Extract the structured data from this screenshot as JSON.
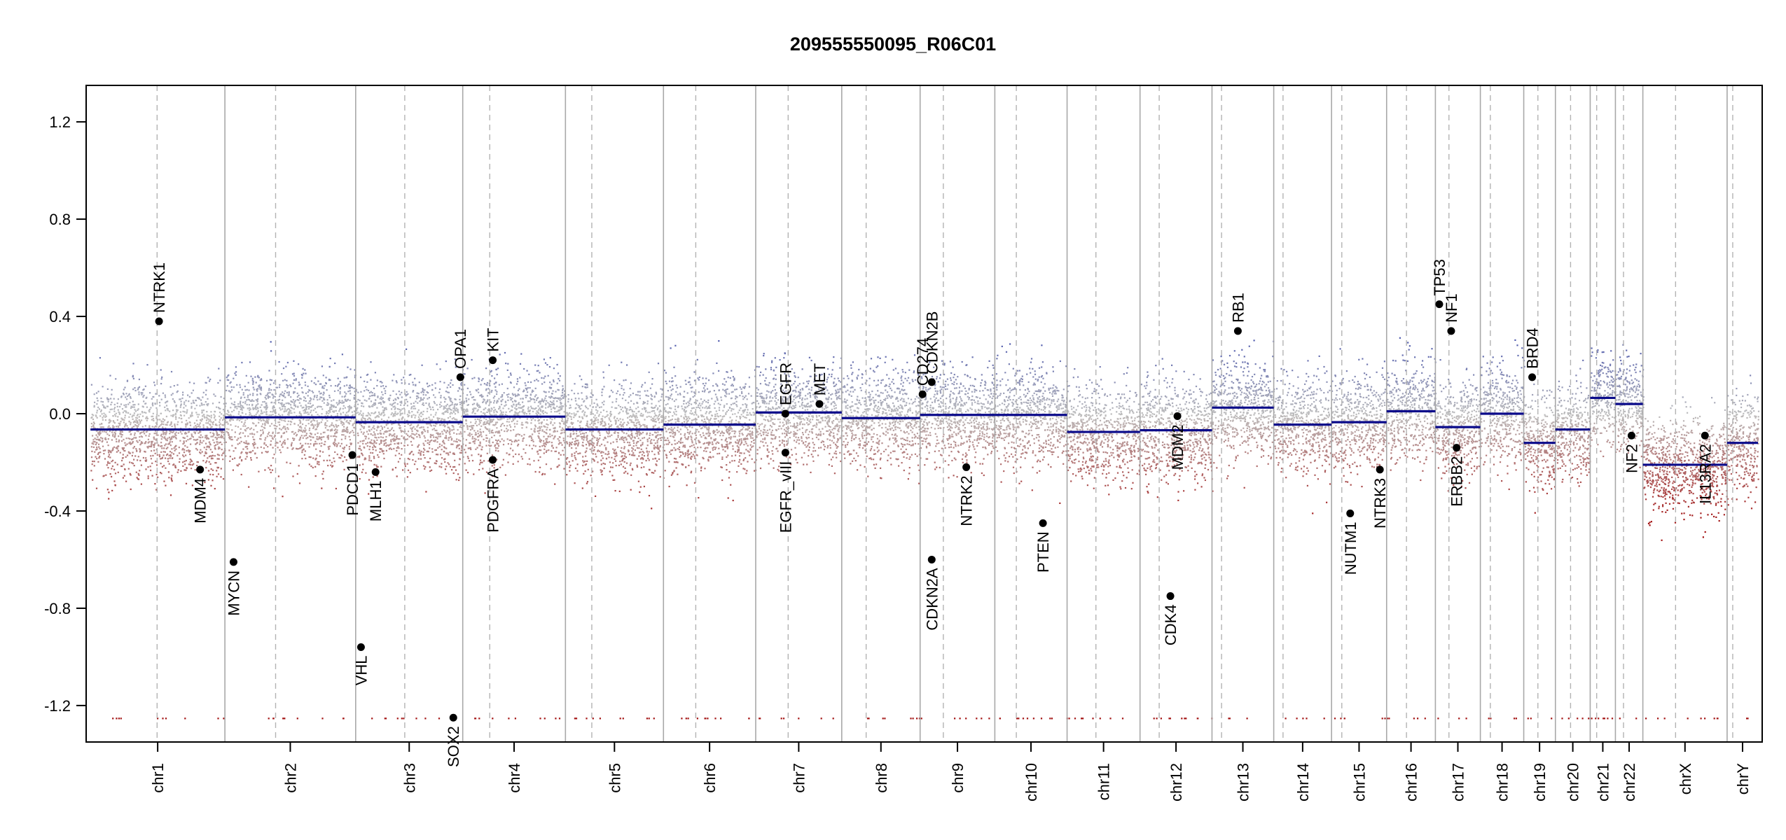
{
  "chart_data": {
    "type": "scatter",
    "title": "209555550095_R06C01",
    "xlabel": "",
    "ylabel": "",
    "ylim": [
      -1.35,
      1.35
    ],
    "yticks": [
      -1.2,
      -0.8,
      -0.4,
      0.0,
      0.4,
      0.8,
      1.2
    ],
    "ytick_labels": [
      "-1.2",
      "-0.8",
      "-0.4",
      "0.0",
      "0.4",
      "0.8",
      "1.2"
    ],
    "grid": false,
    "point_colors": {
      "high": "#1f2fa8",
      "neutral": "#bdbdbd",
      "low": "#a31212"
    },
    "segment_color": "#0a0a8a",
    "chromosomes": [
      {
        "name": "chr1",
        "start": 0,
        "end": 248.96,
        "centromere": 123.4
      },
      {
        "name": "chr2",
        "start": 248.96,
        "end": 491.15,
        "centromere": 93.9
      },
      {
        "name": "chr3",
        "start": 491.15,
        "end": 689.45,
        "centromere": 90.9
      },
      {
        "name": "chr4",
        "start": 689.45,
        "end": 879.66,
        "centromere": 50.0
      },
      {
        "name": "chr5",
        "start": 879.66,
        "end": 1061.2,
        "centromere": 48.8
      },
      {
        "name": "chr6",
        "start": 1061.2,
        "end": 1232.01,
        "centromere": 59.8
      },
      {
        "name": "chr7",
        "start": 1232.01,
        "end": 1391.35,
        "centromere": 60.1
      },
      {
        "name": "chr8",
        "start": 1391.35,
        "end": 1536.49,
        "centromere": 45.2
      },
      {
        "name": "chr9",
        "start": 1536.49,
        "end": 1674.88,
        "centromere": 43.0
      },
      {
        "name": "chr10",
        "start": 1674.88,
        "end": 1808.68,
        "centromere": 39.8
      },
      {
        "name": "chr11",
        "start": 1808.68,
        "end": 1943.77,
        "centromere": 53.4
      },
      {
        "name": "chr12",
        "start": 1943.77,
        "end": 2077.05,
        "centromere": 35.5
      },
      {
        "name": "chr13",
        "start": 2077.05,
        "end": 2191.41,
        "centromere": 17.7
      },
      {
        "name": "chr14",
        "start": 2191.41,
        "end": 2298.45,
        "centromere": 17.2
      },
      {
        "name": "chr15",
        "start": 2298.45,
        "end": 2400.44,
        "centromere": 19.0
      },
      {
        "name": "chr16",
        "start": 2400.44,
        "end": 2490.78,
        "centromere": 36.8
      },
      {
        "name": "chr17",
        "start": 2490.78,
        "end": 2574.04,
        "centromere": 25.1
      },
      {
        "name": "chr18",
        "start": 2574.04,
        "end": 2654.41,
        "centromere": 18.5
      },
      {
        "name": "chr19",
        "start": 2654.41,
        "end": 2713.03,
        "centromere": 26.2
      },
      {
        "name": "chr20",
        "start": 2713.03,
        "end": 2777.47,
        "centromere": 28.1
      },
      {
        "name": "chr21",
        "start": 2777.47,
        "end": 2824.18,
        "centromere": 12.0
      },
      {
        "name": "chr22",
        "start": 2824.18,
        "end": 2875.0,
        "centromere": 15.0
      },
      {
        "name": "chrX",
        "start": 2875.0,
        "end": 3031.04,
        "centromere": 60.6
      },
      {
        "name": "chrY",
        "start": 3031.04,
        "end": 3088.27,
        "centromere": 10.4
      }
    ],
    "x_range": [
      -8,
      3096
    ],
    "segments": [
      {
        "chrom": "chr1",
        "value": -0.065
      },
      {
        "chrom": "chr2",
        "value": -0.015
      },
      {
        "chrom": "chr3",
        "value": -0.035
      },
      {
        "chrom": "chr4",
        "value": -0.012
      },
      {
        "chrom": "chr5",
        "value": -0.065
      },
      {
        "chrom": "chr6",
        "value": -0.045
      },
      {
        "chrom": "chr7",
        "value": 0.005
      },
      {
        "chrom": "chr8",
        "value": -0.018
      },
      {
        "chrom": "chr9",
        "value": -0.005
      },
      {
        "chrom": "chr10",
        "value": -0.005
      },
      {
        "chrom": "chr11",
        "value": -0.075
      },
      {
        "chrom": "chr12",
        "value": -0.068
      },
      {
        "chrom": "chr13",
        "value": 0.025
      },
      {
        "chrom": "chr14",
        "value": -0.045
      },
      {
        "chrom": "chr15",
        "value": -0.035
      },
      {
        "chrom": "chr16",
        "value": 0.01
      },
      {
        "chrom": "chr17",
        "value": -0.055
      },
      {
        "chrom": "chr18",
        "value": 0.0
      },
      {
        "chrom": "chr19",
        "value": -0.12
      },
      {
        "chrom": "chr20",
        "value": -0.065
      },
      {
        "chrom": "chr21",
        "value": 0.065
      },
      {
        "chrom": "chr22",
        "value": 0.04
      },
      {
        "chrom": "chrX",
        "value": -0.21
      },
      {
        "chrom": "chrY",
        "value": -0.12
      }
    ],
    "genes": [
      {
        "name": "NTRK1",
        "x": 127,
        "y": 0.38
      },
      {
        "name": "MDM4",
        "x": 203,
        "y": -0.23
      },
      {
        "name": "MYCN",
        "x": 265,
        "y": -0.61
      },
      {
        "name": "PDCD1",
        "x": 485,
        "y": -0.17
      },
      {
        "name": "VHL",
        "x": 501,
        "y": -0.96
      },
      {
        "name": "MLH1",
        "x": 528,
        "y": -0.24
      },
      {
        "name": "SOX2",
        "x": 672,
        "y": -1.25
      },
      {
        "name": "OPA1",
        "x": 685,
        "y": 0.15
      },
      {
        "name": "KIT",
        "x": 745,
        "y": 0.22
      },
      {
        "name": "PDGFRA",
        "x": 745,
        "y": -0.19
      },
      {
        "name": "EGFR",
        "x": 1287,
        "y": 0.0
      },
      {
        "name": "EGFR_vIII",
        "x": 1287,
        "y": -0.16
      },
      {
        "name": "MET",
        "x": 1350,
        "y": 0.04
      },
      {
        "name": "CD274",
        "x": 1541,
        "y": 0.08
      },
      {
        "name": "CDKN2B",
        "x": 1558,
        "y": 0.13
      },
      {
        "name": "CDKN2A",
        "x": 1558,
        "y": -0.6
      },
      {
        "name": "NTRK2",
        "x": 1622,
        "y": -0.22
      },
      {
        "name": "PTEN",
        "x": 1764,
        "y": -0.45
      },
      {
        "name": "CDK4",
        "x": 2000,
        "y": -0.75
      },
      {
        "name": "MDM2",
        "x": 2013,
        "y": -0.01
      },
      {
        "name": "RB1",
        "x": 2125,
        "y": 0.34
      },
      {
        "name": "NUTM1",
        "x": 2333,
        "y": -0.41
      },
      {
        "name": "NTRK3",
        "x": 2388,
        "y": -0.23
      },
      {
        "name": "TP53",
        "x": 2498,
        "y": 0.45
      },
      {
        "name": "NF1",
        "x": 2520,
        "y": 0.34
      },
      {
        "name": "ERBB2",
        "x": 2530,
        "y": -0.14
      },
      {
        "name": "BRD4",
        "x": 2670,
        "y": 0.15
      },
      {
        "name": "NF2",
        "x": 2854,
        "y": -0.09
      },
      {
        "name": "IL13RA2",
        "x": 2990,
        "y": -0.09
      }
    ]
  }
}
